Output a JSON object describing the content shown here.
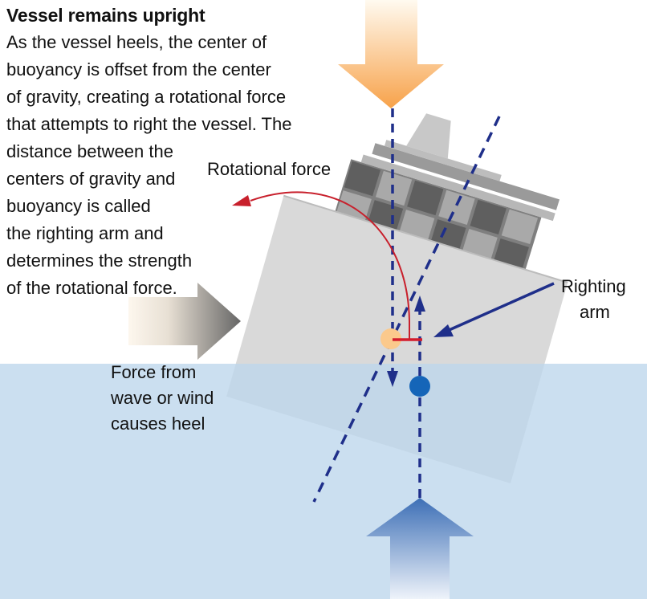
{
  "title": "Vessel remains upright",
  "description_lines": [
    "As the vessel heels, the center of",
    "buoyancy is offset from the center",
    "of gravity, creating a rotational force",
    "that attempts to right the vessel. The",
    "distance between the",
    "centers of gravity and",
    "buoyancy is called",
    "the righting arm and",
    "determines the strength",
    "of the rotational force."
  ],
  "labels": {
    "rotational_force": "Rotational force",
    "righting_arm": [
      "Righting",
      "arm"
    ],
    "force_from_wave": [
      "Force from",
      "wave or wind",
      "causes heel"
    ]
  },
  "colors": {
    "water": "#c9dff0",
    "gravity_arrow": "#f7a24a",
    "buoyancy_arrow": "#3d6fb6",
    "wave_arrow": "#777777",
    "dashed_line": "#1f2f8a",
    "center_of_gravity": "#fbc98c",
    "center_of_buoyancy": "#1565b8",
    "rotational_arrow": "#c8202c",
    "righting_arm": "#d41c2c",
    "righting_pointer": "#1f2f8a"
  }
}
